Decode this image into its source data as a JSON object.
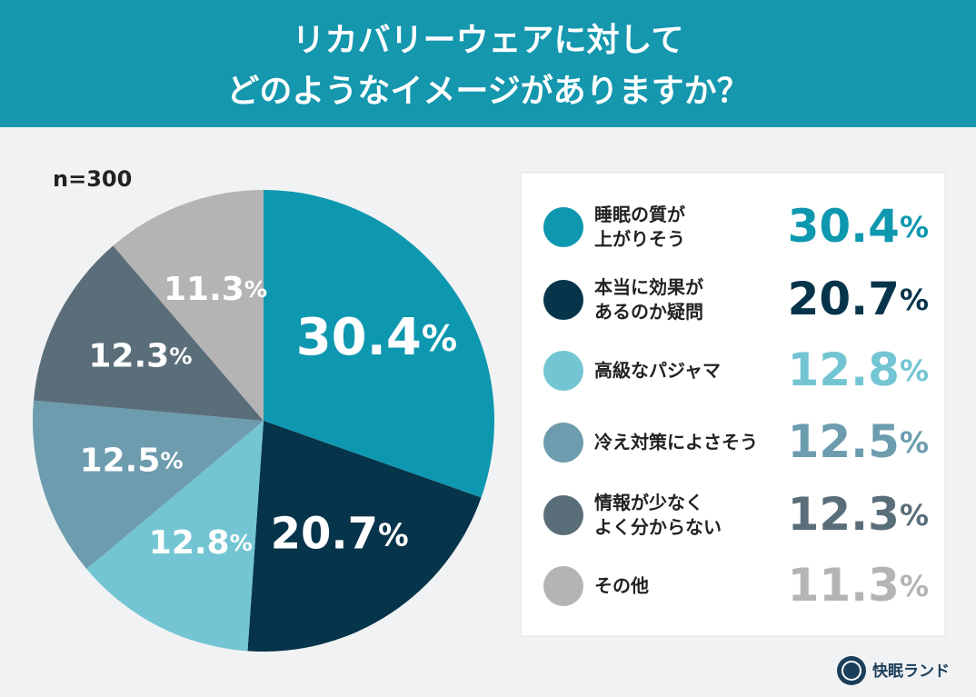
{
  "chart_data": {
    "type": "pie",
    "title": [
      "リカバリーウェアに対して",
      "どのようなイメージがありますか？"
    ],
    "note": "n=300",
    "categories": [
      "睡眠の質が\n上がりそう",
      "本当に効果が\nあるのか疑問",
      "高級なパジャマ",
      "冷え対策によさそう",
      "情報が少なく\nよく分からない",
      "その他"
    ],
    "values": [
      30.4,
      20.7,
      12.8,
      12.5,
      12.3,
      11.3
    ],
    "value_labels": [
      "30.4%",
      "20.7%",
      "12.8%",
      "12.5%",
      "12.3%",
      "11.3%"
    ],
    "colors": [
      "#0e98b0",
      "#06344a",
      "#73c5d3",
      "#6c9cae",
      "#5a6e7a",
      "#b4b4b4"
    ],
    "brand": "快眠ランド"
  }
}
